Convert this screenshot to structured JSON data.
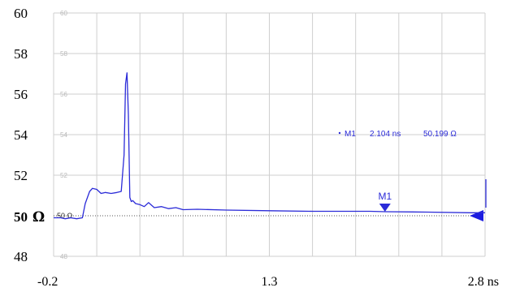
{
  "chart_data": {
    "type": "line",
    "xlim": [
      -0.2,
      2.8
    ],
    "ylim": [
      48,
      60
    ],
    "grid": true,
    "x_tick_labels": [
      {
        "value": -0.2,
        "label": "-0.2"
      },
      {
        "value": 1.3,
        "label": "1.3"
      },
      {
        "value": 2.8,
        "label": "2.8 ns"
      }
    ],
    "y_tick_labels": [
      {
        "value": 60,
        "label": "60"
      },
      {
        "value": 58,
        "label": "58"
      },
      {
        "value": 56,
        "label": "56"
      },
      {
        "value": 54,
        "label": "54"
      },
      {
        "value": 52,
        "label": "52"
      },
      {
        "value": 48,
        "label": "48"
      }
    ],
    "reference_value": 50,
    "reference_label_main": "50",
    "reference_label_unit": "Ω",
    "reference_label_inner": "50 Ω",
    "inner_tick_labels": [
      {
        "value": 60,
        "label": "60"
      },
      {
        "value": 58,
        "label": "58"
      },
      {
        "value": 56,
        "label": "56"
      },
      {
        "value": 54,
        "label": "54"
      },
      {
        "value": 52,
        "label": "52"
      },
      {
        "value": 48,
        "label": "48"
      }
    ],
    "series": [
      {
        "x": [
          -0.2,
          -0.15,
          -0.12,
          -0.08,
          -0.04,
          0.0,
          0.02,
          0.05,
          0.07,
          0.1,
          0.13,
          0.16,
          0.2,
          0.24,
          0.27,
          0.29,
          0.3,
          0.31,
          0.32,
          0.33,
          0.34,
          0.35,
          0.37,
          0.4,
          0.43,
          0.46,
          0.5,
          0.55,
          0.6,
          0.65,
          0.7,
          0.8,
          1.0,
          1.3,
          1.6,
          2.0,
          2.104,
          2.4,
          2.7,
          2.8
        ],
        "y": [
          49.9,
          49.9,
          49.85,
          49.9,
          49.85,
          49.9,
          50.6,
          51.2,
          51.35,
          51.3,
          51.1,
          51.15,
          51.1,
          51.15,
          51.2,
          53.0,
          56.5,
          57.05,
          55.0,
          50.9,
          50.7,
          50.75,
          50.6,
          50.55,
          50.45,
          50.65,
          50.4,
          50.45,
          50.35,
          50.4,
          50.3,
          50.32,
          50.28,
          50.25,
          50.22,
          50.22,
          50.2,
          50.18,
          50.15,
          50.15
        ],
        "color": "#2b2bd8"
      }
    ],
    "markers": [
      {
        "name": "M1",
        "x": 2.104,
        "y": 50.199,
        "readout_label": "M1",
        "readout_x": "2.104 ns",
        "readout_y": "50.199 Ω"
      }
    ],
    "colors": {
      "trace": "#2b2bd8",
      "grid": "#cfcfcf",
      "reference_line": "#555555",
      "reference_arrow": "#1c1ce0"
    }
  }
}
